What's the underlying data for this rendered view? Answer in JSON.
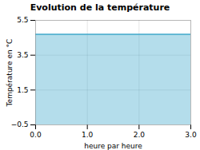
{
  "chart_data": {
    "type": "area",
    "title": "Evolution de la température",
    "xlabel": "heure par heure",
    "ylabel": "Température en °C",
    "x": [
      0,
      3
    ],
    "values": [
      4.7,
      4.7
    ],
    "color": "#44aacc",
    "xlim": [
      0,
      3
    ],
    "ylim": [
      -0.5,
      5.5
    ],
    "xticks": [
      0,
      1,
      2,
      3
    ],
    "yticks": [
      -0.5,
      1.5,
      3.5,
      5.5
    ],
    "grid": true
  }
}
